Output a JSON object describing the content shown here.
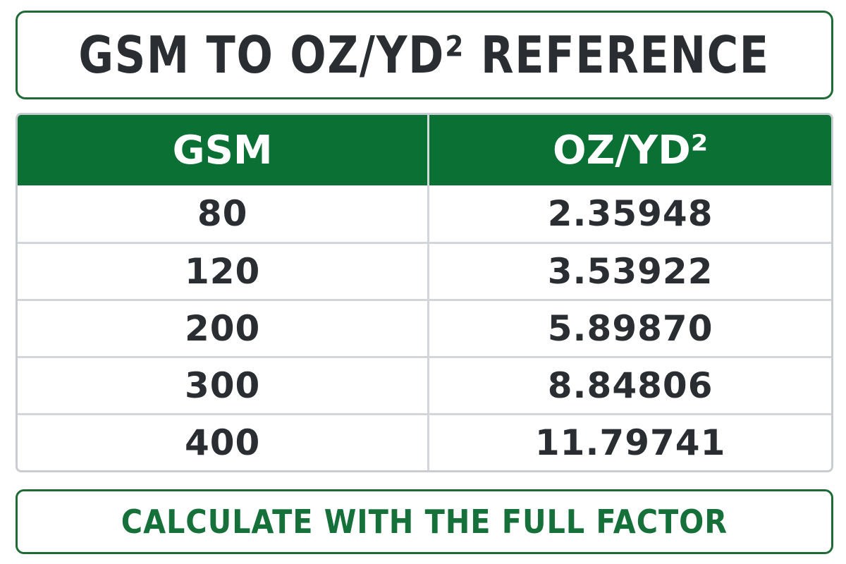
{
  "title": "GSM TO OZ/YD² REFERENCE",
  "table": {
    "headers": [
      "GSM",
      "OZ/YD²"
    ],
    "rows": [
      [
        "80",
        "2.35948"
      ],
      [
        "120",
        "3.53922"
      ],
      [
        "200",
        "5.89870"
      ],
      [
        "300",
        "8.84806"
      ],
      [
        "400",
        "11.79741"
      ]
    ]
  },
  "footer": "CALCULATE WITH THE FULL FACTOR",
  "colors": {
    "accent": "#0a7034",
    "border": "#1e6b35",
    "text": "#2a2e33",
    "footer_text": "#15703a"
  }
}
